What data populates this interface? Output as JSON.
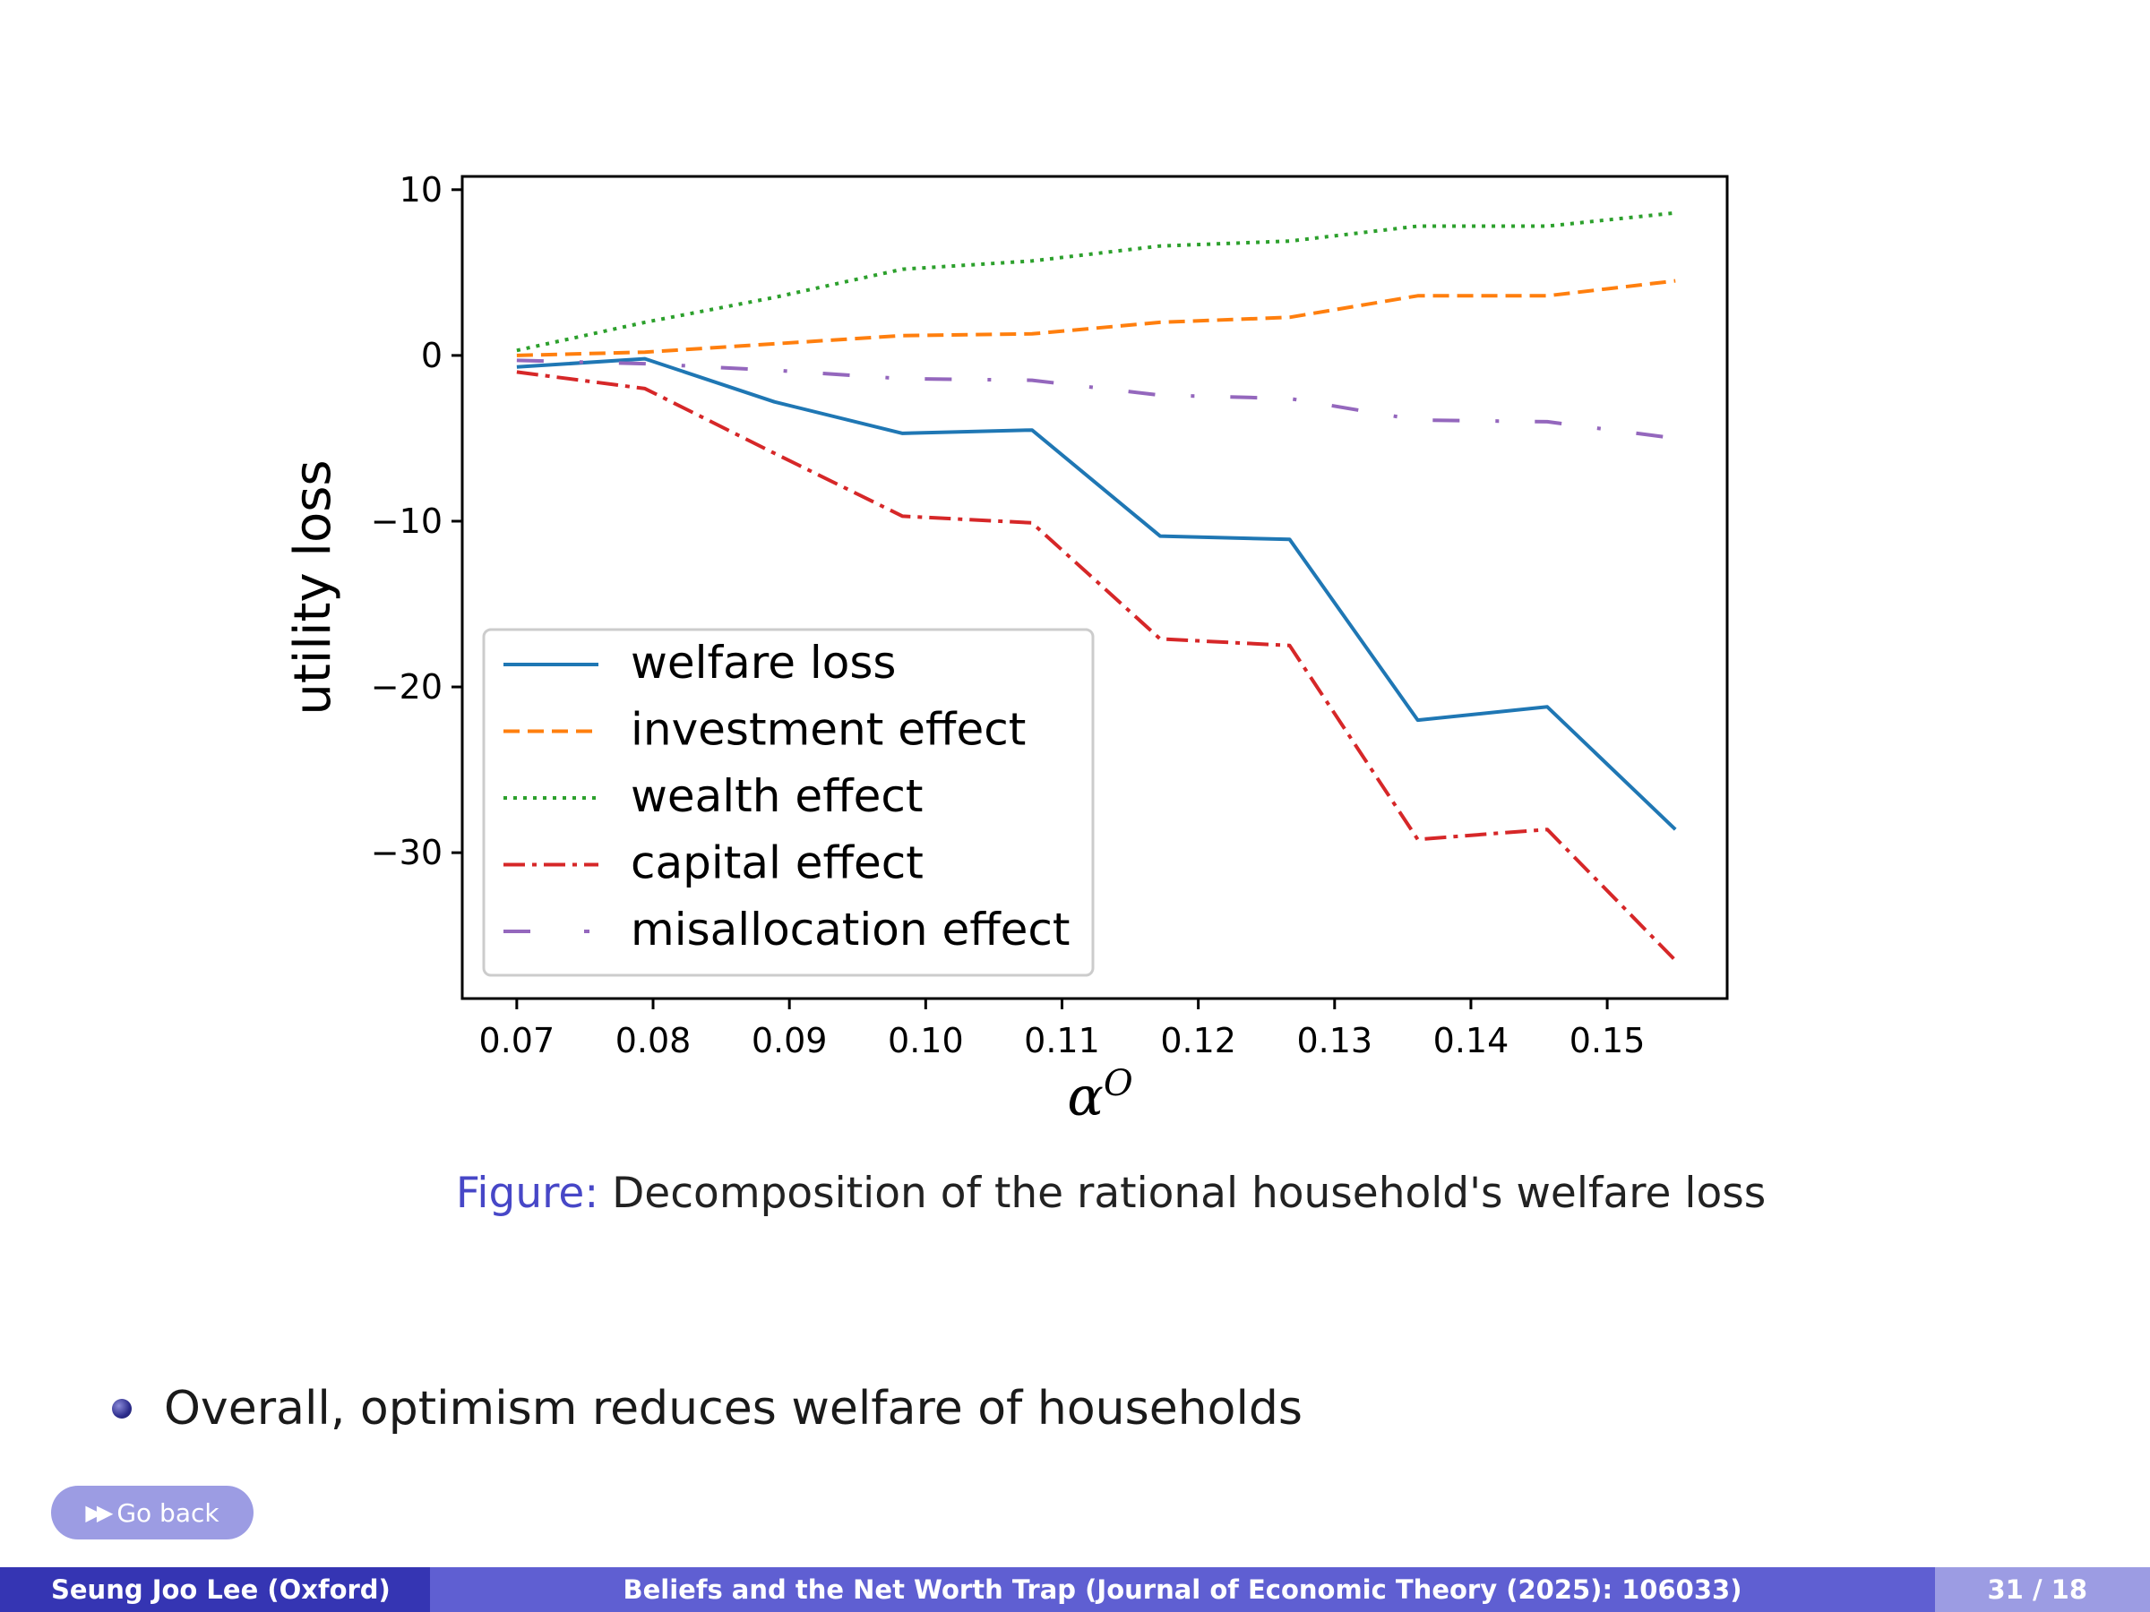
{
  "chart_data": {
    "type": "line",
    "title": "",
    "xlabel": "α^O",
    "xlabel_base": "α",
    "xlabel_sup": "O",
    "ylabel": "utility loss",
    "x": [
      0.07,
      0.0794,
      0.0889,
      0.0983,
      0.1078,
      0.1172,
      0.1267,
      0.1361,
      0.1456,
      0.155
    ],
    "xlim": [
      0.066,
      0.1588
    ],
    "ylim": [
      -38.8,
      10.8
    ],
    "xticks": [
      "0.07",
      "0.08",
      "0.09",
      "0.10",
      "0.11",
      "0.12",
      "0.13",
      "0.14",
      "0.15"
    ],
    "yticks": [
      10,
      0,
      -10,
      -20,
      -30
    ],
    "legend_position": "lower-left",
    "series": [
      {
        "name": "welfare loss",
        "color": "#1f77b4",
        "dash": "solid",
        "values": [
          -0.7,
          -0.2,
          -2.8,
          -4.7,
          -4.5,
          -10.9,
          -11.1,
          -22.0,
          -21.2,
          -28.6
        ]
      },
      {
        "name": "investment effect",
        "color": "#ff7f0e",
        "dash": "dashed",
        "values": [
          0.0,
          0.2,
          0.7,
          1.2,
          1.3,
          2.0,
          2.3,
          3.6,
          3.6,
          4.5
        ]
      },
      {
        "name": "wealth effect",
        "color": "#2ca02c",
        "dash": "dotted",
        "values": [
          0.3,
          2.0,
          3.5,
          5.2,
          5.7,
          6.6,
          6.9,
          7.8,
          7.8,
          8.6
        ]
      },
      {
        "name": "capital effect",
        "color": "#d62728",
        "dash": "dashdot",
        "values": [
          -1.0,
          -2.0,
          -5.9,
          -9.7,
          -10.1,
          -17.1,
          -17.5,
          -29.2,
          -28.6,
          -36.5
        ]
      },
      {
        "name": "misallocation effect",
        "color": "#9467bd",
        "dash": "loosedashdot",
        "values": [
          -0.3,
          -0.5,
          -0.9,
          -1.4,
          -1.5,
          -2.4,
          -2.6,
          -3.9,
          -4.0,
          -5.0
        ]
      }
    ]
  },
  "caption": {
    "label": "Figure:",
    "text": "Decomposition of the rational household's welfare loss"
  },
  "bullet": {
    "text": "Overall, optimism reduces welfare of households"
  },
  "go_back": {
    "label": "Go back",
    "icon": "double-arrow-right-icon"
  },
  "footer": {
    "author": "Seung Joo Lee (Oxford)",
    "title": "Beliefs and the Net Worth Trap (Journal of Economic Theory (2025): 106033)",
    "page": "31 / 18"
  }
}
